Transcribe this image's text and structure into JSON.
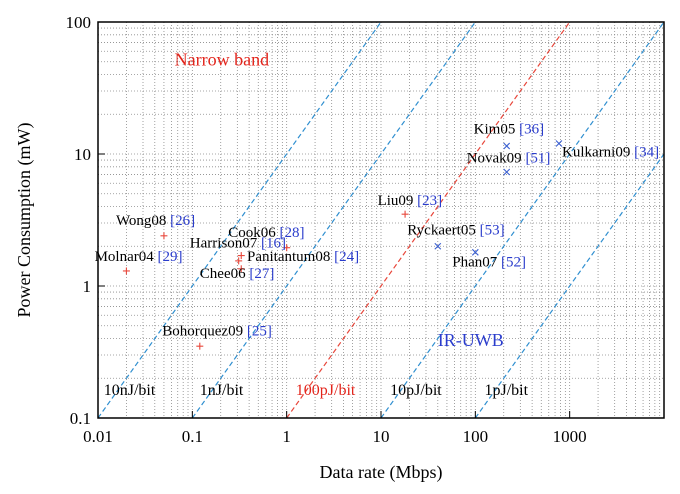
{
  "chart_data": {
    "type": "scatter",
    "xscale": "log",
    "yscale": "log",
    "xlim": [
      0.01,
      10000
    ],
    "ylim": [
      0.1,
      100
    ],
    "grid": true,
    "xlabel": "Data rate (Mbps)",
    "ylabel": "Power Consumption (mW)",
    "x_tick_labels": [
      "0.01",
      "0.1",
      "1",
      "10",
      "100",
      "1000"
    ],
    "x_tick_values": [
      0.01,
      0.1,
      1,
      10,
      100,
      1000
    ],
    "y_tick_labels": [
      "0.1",
      "1",
      "10",
      "100"
    ],
    "y_tick_values": [
      0.1,
      1,
      10,
      100
    ],
    "colors": {
      "narrow_marker": "#e8463a",
      "uwb_marker": "#3a5fd0",
      "dashed_line": "#2f8fd0",
      "highlight_line": "#e8463a",
      "citation": "#2a3ccc",
      "region_narrow": "#e3241b",
      "region_uwb": "#2a3ccc",
      "axis_text": "#000000"
    },
    "region_labels": [
      {
        "text": "Narrow band",
        "color": "#e3241b",
        "x": 0.065,
        "y": 47
      },
      {
        "text": "IR-UWB",
        "color": "#2a3ccc",
        "x": 40,
        "y": 0.35
      }
    ],
    "energy_lines": [
      {
        "label": "10nJ/bit",
        "energy_pj": 10000,
        "color": "#2f8fd0",
        "label_x": 0.0115,
        "label_y": 0.15
      },
      {
        "label": "1nJ/bit",
        "energy_pj": 1000,
        "color": "#2f8fd0",
        "label_x": 0.12,
        "label_y": 0.15
      },
      {
        "label": "100pJ/bit",
        "energy_pj": 100,
        "color": "#e8463a",
        "label_x": 1.25,
        "label_y": 0.15
      },
      {
        "label": "10pJ/bit",
        "energy_pj": 10,
        "color": "#2f8fd0",
        "label_x": 12.5,
        "label_y": 0.15
      },
      {
        "label": "1pJ/bit",
        "energy_pj": 1,
        "color": "#2f8fd0",
        "label_x": 125,
        "label_y": 0.15
      }
    ],
    "points": [
      {
        "name": "Wong08",
        "ref": "[26]",
        "x": 0.05,
        "y": 2.4,
        "group": "narrow",
        "label_x": 0.0155,
        "label_y": 2.9
      },
      {
        "name": "Molnar04",
        "ref": "[29]",
        "x": 0.02,
        "y": 1.3,
        "group": "narrow",
        "label_x": 0.0092,
        "label_y": 1.55
      },
      {
        "name": "Cook06",
        "ref": "[28]",
        "x": 0.33,
        "y": 1.7,
        "group": "narrow",
        "label_x": 0.24,
        "label_y": 2.35
      },
      {
        "name": "Harrison07",
        "ref": "[16]",
        "x": 1.0,
        "y": 1.95,
        "group": "narrow",
        "label_x": 0.094,
        "label_y": 1.95
      },
      {
        "name": "Panitantum08",
        "ref": "[24]",
        "x": 0.33,
        "y": 1.35,
        "group": "narrow",
        "label_x": 0.38,
        "label_y": 1.55
      },
      {
        "name": "Chee06",
        "ref": "[27]",
        "x": 0.31,
        "y": 1.55,
        "group": "narrow",
        "label_x": 0.12,
        "label_y": 1.15
      },
      {
        "name": "Bohorquez09",
        "ref": "[25]",
        "x": 0.12,
        "y": 0.35,
        "group": "narrow",
        "label_x": 0.048,
        "label_y": 0.42
      },
      {
        "name": "Liu09",
        "ref": "[23]",
        "x": 18,
        "y": 3.5,
        "group": "narrow",
        "label_x": 9.2,
        "label_y": 4.1
      },
      {
        "name": "Kim05",
        "ref": "[36]",
        "x": 215,
        "y": 11.5,
        "group": "uwb",
        "label_x": 96,
        "label_y": 14.3
      },
      {
        "name": "Novak09",
        "ref": "[51]",
        "x": 215,
        "y": 7.3,
        "group": "uwb",
        "label_x": 81,
        "label_y": 8.6
      },
      {
        "name": "Kulkarni09",
        "ref": "[34]",
        "x": 770,
        "y": 12,
        "group": "uwb",
        "label_x": 830,
        "label_y": 9.6
      },
      {
        "name": "Ryckaert05",
        "ref": "[53]",
        "x": 40,
        "y": 2.0,
        "group": "uwb",
        "label_x": 19,
        "label_y": 2.45
      },
      {
        "name": "Phan07",
        "ref": "[52]",
        "x": 100,
        "y": 1.8,
        "group": "uwb",
        "label_x": 57,
        "label_y": 1.4
      }
    ]
  }
}
